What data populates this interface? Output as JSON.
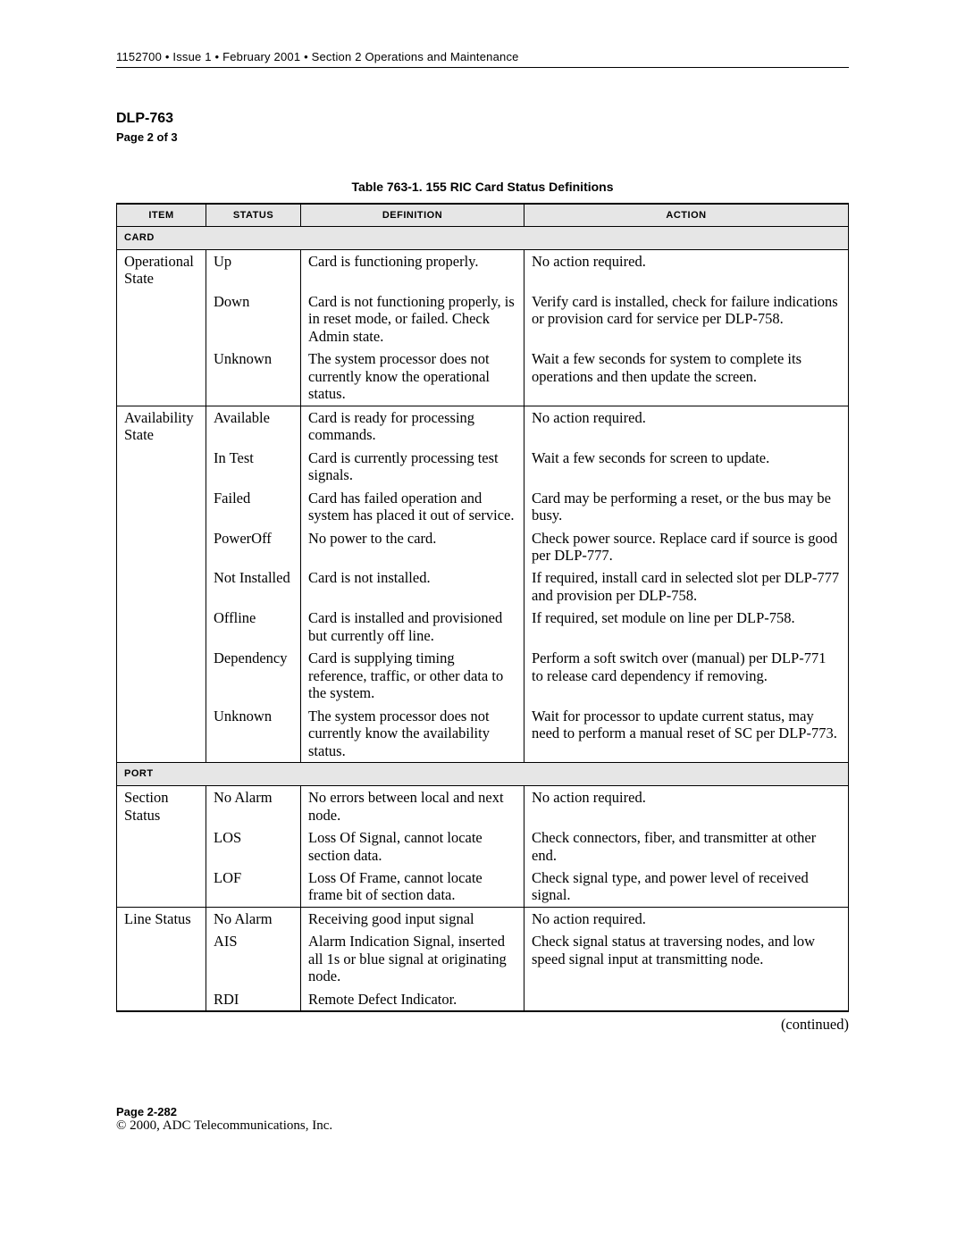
{
  "header": "1152700 • Issue 1 • February 2001 • Section 2 Operations and Maintenance",
  "dlp": "DLP-763",
  "subpage": "Page 2 of 3",
  "caption": "Table 763-1.  155 RIC Card Status Definitions",
  "columns": {
    "item": "ITEM",
    "status": "STATUS",
    "definition": "DEFINITION",
    "action": "ACTION"
  },
  "sections": {
    "card": "CARD",
    "port": "PORT"
  },
  "card_rows": [
    {
      "item": "Operational State",
      "status": "Up",
      "definition": "Card is functioning properly.",
      "action": "No action required."
    },
    {
      "item": "",
      "status": "Down",
      "definition": "Card is not functioning properly, is in reset mode, or failed. Check Admin state.",
      "action": "Verify card is installed, check for failure indications or provision card for service per DLP-758."
    },
    {
      "item": "",
      "status": "Unknown",
      "definition": "The system processor does not currently know the operational status.",
      "action": "Wait a few seconds for system to complete its operations and then update the screen."
    },
    {
      "item": "Availability State",
      "status": "Available",
      "definition": "Card is ready for processing commands.",
      "action": "No action required."
    },
    {
      "item": "",
      "status": "In Test",
      "definition": "Card is currently processing test signals.",
      "action": "Wait a few seconds for screen to update."
    },
    {
      "item": "",
      "status": "Failed",
      "definition": "Card has failed operation and system has placed it out of service.",
      "action": "Card may be performing a reset, or the bus may be busy."
    },
    {
      "item": "",
      "status": "PowerOff",
      "definition": "No power to the card.",
      "action": "Check power source. Replace card if source is good per DLP-777."
    },
    {
      "item": "",
      "status": "Not Installed",
      "definition": "Card is not installed.",
      "action": "If required, install card in selected slot per DLP-777 and provision per DLP-758."
    },
    {
      "item": "",
      "status": "Offline",
      "definition": "Card is installed and provisioned but currently off line.",
      "action": "If required, set module on line per DLP-758."
    },
    {
      "item": "",
      "status": "Dependency",
      "definition": "Card is supplying timing reference, traffic, or other data to the system.",
      "action": "Perform a soft switch over (manual) per DLP-771 to release card dependency if removing."
    },
    {
      "item": "",
      "status": "Unknown",
      "definition": "The system processor does not currently know the availability status.",
      "action": "Wait for processor to update current status, may need to perform a manual reset of SC per DLP-773."
    }
  ],
  "port_rows": [
    {
      "item": "Section Status",
      "status": "No Alarm",
      "definition": "No errors between local and next node.",
      "action": "No action required."
    },
    {
      "item": "",
      "status": "LOS",
      "definition": "Loss Of Signal, cannot locate section data.",
      "action": "Check connectors, fiber, and transmitter at other end."
    },
    {
      "item": "",
      "status": "LOF",
      "definition": "Loss Of Frame, cannot locate frame bit of section data.",
      "action": "Check signal type, and power level of received signal."
    },
    {
      "item": "Line Status",
      "status": "No Alarm",
      "definition": "Receiving good input signal",
      "action": "No action required."
    },
    {
      "item": "",
      "status": "AIS",
      "definition": "Alarm Indication Signal, inserted all 1s or blue signal at originating node.",
      "action": "Check signal status at traversing nodes, and low speed signal input at transmitting node."
    },
    {
      "item": "",
      "status": "RDI",
      "definition": "Remote Defect Indicator.",
      "action": ""
    }
  ],
  "continued": "(continued)",
  "footer": {
    "page": "Page 2-282",
    "copyright": "© 2000, ADC Telecommunications, Inc."
  }
}
